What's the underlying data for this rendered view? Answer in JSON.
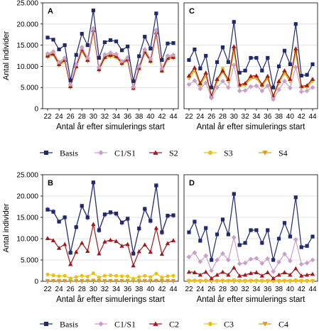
{
  "colors": {
    "Basis": "#1f2a6e",
    "C1/S1": "#c9a0c9",
    "S2": "#a0191e",
    "C2": "#a0191e",
    "S3": "#e8c21a",
    "C3": "#e8c21a",
    "S4": "#e09a18",
    "C4": "#e09a18"
  },
  "markers": {
    "Basis": "square",
    "C1/S1": "diamond",
    "S2": "triangle-up",
    "C2": "triangle-up",
    "S3": "circle",
    "C3": "circle",
    "S4": "triangle-down",
    "C4": "triangle-down"
  },
  "legend_top": [
    "Basis",
    "C1/S1",
    "S2",
    "S3",
    "S4"
  ],
  "legend_bottom": [
    "Basis",
    "C1/S1",
    "C2",
    "C3",
    "C4"
  ],
  "chart_data": [
    {
      "type": "line",
      "panel": "A",
      "ylabel": "Antal individer",
      "xlabel": "Antal år efter simulerings start",
      "ylim": [
        0,
        25000
      ],
      "yticks": [
        "0",
        "5.000",
        "10.000",
        "15.000",
        "20.000",
        "25.000"
      ],
      "ytick_values": [
        0,
        5000,
        10000,
        15000,
        20000,
        25000
      ],
      "x": [
        22,
        23,
        24,
        25,
        26,
        27,
        28,
        29,
        30,
        31,
        32,
        33,
        34,
        35,
        36,
        37,
        38,
        39,
        40,
        41,
        42,
        43,
        44
      ],
      "xticks": [
        22,
        24,
        26,
        28,
        30,
        32,
        34,
        36,
        38,
        40,
        42,
        44
      ],
      "series": [
        {
          "name": "Basis",
          "values": [
            16800,
            16300,
            14000,
            15000,
            6700,
            12700,
            17700,
            15000,
            23200,
            12000,
            15700,
            16200,
            15900,
            13800,
            14700,
            6500,
            12400,
            17000,
            14200,
            22500,
            11500,
            15400,
            15500
          ]
        },
        {
          "name": "C1/S1",
          "values": [
            13000,
            13500,
            11000,
            12000,
            5700,
            10500,
            14500,
            12000,
            19000,
            9800,
            12800,
            13200,
            12900,
            11200,
            12100,
            5200,
            10100,
            14000,
            11800,
            18600,
            9500,
            12500,
            12700
          ]
        },
        {
          "name": "S2",
          "values": [
            12500,
            13000,
            10500,
            11500,
            5300,
            10000,
            14000,
            11500,
            18500,
            9300,
            12200,
            12700,
            12400,
            10800,
            11600,
            4900,
            9600,
            13500,
            11300,
            18000,
            9000,
            12000,
            12200
          ]
        },
        {
          "name": "S3",
          "values": [
            12800,
            13300,
            10800,
            11800,
            5500,
            10300,
            14300,
            11800,
            18800,
            9600,
            12500,
            13000,
            12700,
            11000,
            11900,
            5100,
            9900,
            13800,
            11600,
            18300,
            9300,
            12300,
            12500
          ]
        },
        {
          "name": "S4",
          "values": [
            12200,
            12700,
            10200,
            11200,
            5000,
            9700,
            13600,
            11200,
            18100,
            9000,
            11900,
            12300,
            12100,
            10500,
            11300,
            4700,
            9300,
            13200,
            11000,
            17600,
            8800,
            11700,
            11900
          ]
        }
      ]
    },
    {
      "type": "line",
      "panel": "C",
      "xlabel": "Antal år efter simulerings start",
      "ylim": [
        0,
        25000
      ],
      "x": [
        22,
        23,
        24,
        25,
        26,
        27,
        28,
        29,
        30,
        31,
        32,
        33,
        34,
        35,
        36,
        37,
        38,
        39,
        40,
        41,
        42,
        43,
        44
      ],
      "xticks": [
        22,
        24,
        26,
        28,
        30,
        32,
        34,
        36,
        38,
        40,
        42,
        44
      ],
      "series": [
        {
          "name": "Basis",
          "values": [
            11500,
            14000,
            9500,
            12500,
            5000,
            11000,
            14500,
            11000,
            20500,
            8500,
            9000,
            12000,
            12000,
            9000,
            12000,
            5000,
            10000,
            13700,
            10500,
            20000,
            7800,
            8000,
            10500
          ]
        },
        {
          "name": "C1/S1",
          "values": [
            5700,
            6600,
            4700,
            6100,
            2500,
            5000,
            6500,
            5000,
            10300,
            4200,
            4300,
            5200,
            5400,
            4200,
            5400,
            2200,
            4500,
            6500,
            4900,
            9800,
            4000,
            4200,
            5000
          ]
        },
        {
          "name": "S2",
          "values": [
            7800,
            9700,
            6000,
            8500,
            3000,
            7000,
            9000,
            7000,
            14700,
            5700,
            6000,
            7700,
            7800,
            5700,
            7700,
            3000,
            6500,
            9000,
            7000,
            14200,
            5300,
            5500,
            7000
          ]
        },
        {
          "name": "S3",
          "values": [
            7500,
            9300,
            5700,
            8100,
            2900,
            6700,
            9500,
            6700,
            14000,
            5500,
            5800,
            7400,
            7500,
            5500,
            7400,
            2900,
            6300,
            8700,
            6700,
            13500,
            5100,
            5300,
            6700
          ]
        },
        {
          "name": "S4",
          "values": [
            7200,
            9000,
            5500,
            7800,
            2800,
            6400,
            8700,
            6400,
            13700,
            5300,
            5600,
            7100,
            7200,
            5300,
            7100,
            2700,
            6000,
            8400,
            6400,
            13200,
            4900,
            5100,
            6500
          ]
        }
      ]
    },
    {
      "type": "line",
      "panel": "B",
      "ylabel": "Antal individer",
      "xlabel": "Antal år efter simulerings start",
      "ylim": [
        0,
        25000
      ],
      "yticks": [
        "0",
        "5.000",
        "10.000",
        "15.000",
        "20.000",
        "25.000"
      ],
      "ytick_values": [
        0,
        5000,
        10000,
        15000,
        20000,
        25000
      ],
      "x": [
        22,
        23,
        24,
        25,
        26,
        27,
        28,
        29,
        30,
        31,
        32,
        33,
        34,
        35,
        36,
        37,
        38,
        39,
        40,
        41,
        42,
        43,
        44
      ],
      "xticks": [
        22,
        24,
        26,
        28,
        30,
        32,
        34,
        36,
        38,
        40,
        42,
        44
      ],
      "series": [
        {
          "name": "Basis",
          "values": [
            16800,
            16300,
            14000,
            15000,
            6700,
            12700,
            17700,
            15000,
            23200,
            12000,
            15700,
            16200,
            15900,
            13800,
            14700,
            6500,
            12400,
            17000,
            14200,
            22500,
            11500,
            15400,
            15500
          ]
        },
        {
          "name": "C1/S1",
          "values": [
            17000,
            16500,
            14000,
            15000,
            6700,
            12700,
            17500,
            14800,
            23000,
            11800,
            15500,
            16000,
            15700,
            13600,
            14500,
            6400,
            12200,
            16800,
            14000,
            22300,
            11300,
            15200,
            15300
          ]
        },
        {
          "name": "C2",
          "values": [
            10100,
            9600,
            7800,
            8700,
            4000,
            6900,
            9000,
            7100,
            13400,
            6500,
            9300,
            9700,
            9400,
            8300,
            8700,
            3700,
            7000,
            8600,
            6900,
            12500,
            6400,
            8900,
            9600
          ]
        },
        {
          "name": "C3",
          "values": [
            1600,
            1400,
            1200,
            1300,
            700,
            1000,
            1300,
            1100,
            1900,
            900,
            1300,
            1400,
            1300,
            1200,
            1200,
            600,
            1000,
            1300,
            1000,
            1800,
            900,
            1200,
            1300
          ]
        },
        {
          "name": "C4",
          "values": [
            100,
            100,
            100,
            100,
            50,
            80,
            100,
            80,
            150,
            70,
            100,
            100,
            100,
            90,
            90,
            50,
            80,
            100,
            80,
            140,
            70,
            90,
            100
          ]
        }
      ]
    },
    {
      "type": "line",
      "panel": "D",
      "xlabel": "Antal år efter simulerings start",
      "ylim": [
        0,
        25000
      ],
      "x": [
        22,
        23,
        24,
        25,
        26,
        27,
        28,
        29,
        30,
        31,
        32,
        33,
        34,
        35,
        36,
        37,
        38,
        39,
        40,
        41,
        42,
        43,
        44
      ],
      "xticks": [
        22,
        24,
        26,
        28,
        30,
        32,
        34,
        36,
        38,
        40,
        42,
        44
      ],
      "series": [
        {
          "name": "Basis",
          "values": [
            11500,
            14000,
            9500,
            12500,
            5000,
            11000,
            14500,
            11000,
            20500,
            8500,
            9000,
            12000,
            12000,
            9000,
            12000,
            5000,
            10000,
            13700,
            10500,
            19700,
            8000,
            8300,
            10500
          ]
        },
        {
          "name": "C1/S1",
          "values": [
            5700,
            6700,
            4600,
            6000,
            2500,
            5000,
            6500,
            5000,
            10300,
            4100,
            4300,
            5200,
            5400,
            4200,
            5300,
            2300,
            4500,
            6400,
            4800,
            9800,
            4000,
            4300,
            5000
          ]
        },
        {
          "name": "C2",
          "values": [
            2200,
            2100,
            1500,
            2200,
            700,
            1500,
            2200,
            1500,
            3200,
            1300,
            1500,
            1900,
            2100,
            1300,
            2100,
            700,
            1500,
            2100,
            1500,
            3000,
            1300,
            1500,
            1700
          ]
        },
        {
          "name": "C3",
          "values": [
            200,
            200,
            150,
            200,
            80,
            150,
            200,
            150,
            300,
            120,
            150,
            180,
            200,
            120,
            200,
            80,
            150,
            200,
            150,
            280,
            120,
            150,
            160
          ]
        },
        {
          "name": "C4",
          "values": [
            20,
            20,
            15,
            20,
            10,
            15,
            20,
            15,
            30,
            12,
            15,
            18,
            20,
            12,
            20,
            8,
            15,
            20,
            15,
            28,
            12,
            15,
            16
          ]
        }
      ]
    }
  ]
}
